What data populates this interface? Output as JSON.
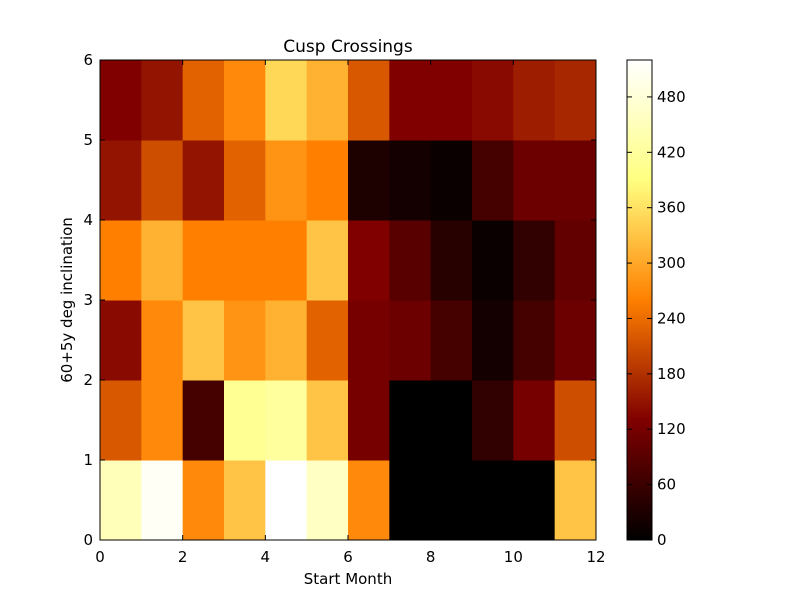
{
  "chart_data": {
    "type": "heatmap",
    "title": "Cusp Crossings",
    "xlabel": "Start Month",
    "ylabel": "60+5y deg inclination",
    "xlim": [
      0,
      12
    ],
    "ylim": [
      0,
      6
    ],
    "xticks": [
      "0",
      "2",
      "4",
      "6",
      "8",
      "10",
      "12"
    ],
    "yticks": [
      "0",
      "1",
      "2",
      "3",
      "4",
      "5",
      "6"
    ],
    "colormap": "afmhot",
    "colorbar": {
      "range": [
        0,
        520
      ],
      "ticks": [
        "0",
        "60",
        "120",
        "180",
        "240",
        "300",
        "360",
        "420",
        "480"
      ]
    },
    "grid": false,
    "x_bins": [
      0,
      1,
      2,
      3,
      4,
      5,
      6,
      7,
      8,
      9,
      10,
      11,
      12
    ],
    "y_bins": [
      0,
      1,
      2,
      3,
      4,
      5,
      6
    ],
    "values": [
      [
        450,
        510,
        270,
        330,
        520,
        460,
        270,
        0,
        0,
        0,
        0,
        330
      ],
      [
        220,
        270,
        70,
        410,
        420,
        330,
        120,
        0,
        0,
        50,
        120,
        210
      ],
      [
        140,
        270,
        330,
        280,
        310,
        230,
        120,
        110,
        70,
        20,
        70,
        110
      ],
      [
        260,
        310,
        260,
        260,
        260,
        330,
        130,
        90,
        40,
        10,
        50,
        100
      ],
      [
        150,
        210,
        150,
        230,
        280,
        260,
        30,
        20,
        10,
        70,
        110,
        110
      ],
      [
        130,
        150,
        230,
        270,
        350,
        310,
        220,
        130,
        130,
        140,
        160,
        170
      ]
    ]
  }
}
